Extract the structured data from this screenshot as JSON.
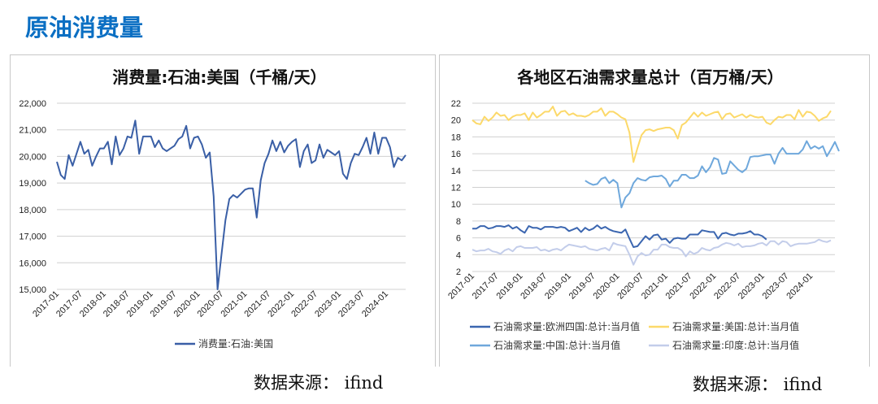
{
  "header": {
    "title": "原油消费量"
  },
  "source": {
    "left": "数据来源：  ifind",
    "right": "数据来源：  ifind"
  },
  "colors": {
    "title": "#0b6fc3",
    "us_consumption": "#3a5fa6",
    "europe": "#3b66b0",
    "us": "#fcd96a",
    "china": "#6fa8dc",
    "india": "#c3cdea"
  },
  "chart_data": [
    {
      "type": "line",
      "title": "消费量:石油:美国（千桶/天）",
      "xlabel": "",
      "ylabel": "",
      "ylim": [
        15000,
        22000
      ],
      "yticks": [
        "15,000",
        "16,000",
        "17,000",
        "18,000",
        "19,000",
        "20,000",
        "21,000",
        "22,000"
      ],
      "ytick_values": [
        15000,
        16000,
        17000,
        18000,
        19000,
        20000,
        21000,
        22000
      ],
      "xticks": [
        "2017-01",
        "2017-07",
        "2018-01",
        "2018-07",
        "2019-01",
        "2019-07",
        "2020-01",
        "2020-07",
        "2021-01",
        "2021-07",
        "2022-01",
        "2022-07",
        "2023-01",
        "2023-07",
        "2024-01"
      ],
      "start_month": "2017-01",
      "legend_position": "bottom",
      "grid": true,
      "series": [
        {
          "name": "消费量:石油:美国",
          "color": "#3a5fa6",
          "values": [
            19800,
            19300,
            19150,
            20050,
            19650,
            20100,
            20550,
            20100,
            20250,
            19650,
            20000,
            20300,
            20300,
            20550,
            19700,
            20750,
            20050,
            20300,
            20750,
            20700,
            21350,
            20100,
            20750,
            20750,
            20750,
            20350,
            20600,
            20300,
            20200,
            20300,
            20400,
            20650,
            20750,
            21150,
            20300,
            20700,
            20750,
            20450,
            19950,
            20150,
            18500,
            15000,
            16300,
            17600,
            18400,
            18550,
            18450,
            18600,
            18750,
            18800,
            18800,
            17700,
            19100,
            19750,
            20100,
            20600,
            20200,
            20550,
            20150,
            20400,
            20550,
            20650,
            19600,
            20200,
            20450,
            19750,
            19850,
            20450,
            19950,
            20250,
            20150,
            20050,
            20200,
            19350,
            19150,
            19750,
            20100,
            20050,
            20350,
            20700,
            20100,
            20900,
            20100,
            20700,
            20700,
            20350,
            19600,
            19950,
            19850,
            20050
          ]
        }
      ]
    },
    {
      "type": "line",
      "title": "各地区石油需求量总计（百万桶/天）",
      "xlabel": "",
      "ylabel": "",
      "ylim": [
        2,
        22
      ],
      "yticks": [
        "2",
        "4",
        "6",
        "8",
        "10",
        "12",
        "14",
        "16",
        "18",
        "20",
        "22"
      ],
      "ytick_values": [
        2,
        4,
        6,
        8,
        10,
        12,
        14,
        16,
        18,
        20,
        22
      ],
      "xticks": [
        "2017-01",
        "2017-07",
        "2018-01",
        "2018-07",
        "2019-01",
        "2019-07",
        "2020-01",
        "2020-07",
        "2021-01",
        "2021-07",
        "2022-01",
        "2022-07",
        "2023-01",
        "2023-07",
        "2024-01"
      ],
      "start_month": "2017-01",
      "legend_position": "bottom",
      "grid": true,
      "series": [
        {
          "name": "石油需求量:欧洲四国:总计:当月值",
          "color": "#3b66b0",
          "start_index": 0,
          "values": [
            7.1,
            7.1,
            7.4,
            7.4,
            7.1,
            7.2,
            7.4,
            7.4,
            7.3,
            7.5,
            7.1,
            7.3,
            6.9,
            6.6,
            7.4,
            7.2,
            7.2,
            7.0,
            7.3,
            7.3,
            7.3,
            7.2,
            7.3,
            7.2,
            6.8,
            7.0,
            7.2,
            6.7,
            7.2,
            6.9,
            7.1,
            7.5,
            7.1,
            7.3,
            7.0,
            6.8,
            6.7,
            6.6,
            7.0,
            5.9,
            4.9,
            5.0,
            5.6,
            6.2,
            5.8,
            6.3,
            6.4,
            5.8,
            5.9,
            5.4,
            5.9,
            6.0,
            5.9,
            5.9,
            6.4,
            6.4,
            6.4,
            6.9,
            6.8,
            6.7,
            6.7,
            5.9,
            6.5,
            6.6,
            6.4,
            6.3,
            6.5,
            6.5,
            6.6,
            6.8,
            6.4,
            6.4,
            6.2,
            5.8
          ]
        },
        {
          "name": "石油需求量:美国:总计:当月值",
          "color": "#fcd96a",
          "start_index": 0,
          "values": [
            20.0,
            19.6,
            19.5,
            20.4,
            19.9,
            20.3,
            20.9,
            20.5,
            20.6,
            20.0,
            20.4,
            20.6,
            20.6,
            20.8,
            20.0,
            20.9,
            20.3,
            20.6,
            21.0,
            21.0,
            21.6,
            20.5,
            21.0,
            21.1,
            20.6,
            20.8,
            20.5,
            20.5,
            20.4,
            20.6,
            21.0,
            21.0,
            21.4,
            20.5,
            21.0,
            21.0,
            20.7,
            20.3,
            20.1,
            18.5,
            15.0,
            16.7,
            18.2,
            18.8,
            18.9,
            18.7,
            18.9,
            19.0,
            19.1,
            19.1,
            18.8,
            17.8,
            19.4,
            19.7,
            20.3,
            20.9,
            20.4,
            20.9,
            20.5,
            20.7,
            20.9,
            21.0,
            20.1,
            20.7,
            20.8,
            20.3,
            20.5,
            20.7,
            20.3,
            20.6,
            20.4,
            20.3,
            20.4,
            19.7,
            19.5,
            20.0,
            20.4,
            20.3,
            20.6,
            20.6,
            20.1,
            21.2,
            20.4,
            21.0,
            20.9,
            20.5,
            19.9,
            20.2,
            20.4,
            21.1
          ]
        },
        {
          "name": "石油需求量:中国:总计:当月值",
          "color": "#6fa8dc",
          "start_index": 28,
          "values": [
            12.8,
            12.5,
            12.3,
            12.4,
            13.0,
            13.2,
            12.5,
            12.9,
            12.5,
            9.6,
            10.8,
            11.3,
            12.5,
            13.1,
            12.9,
            12.8,
            13.2,
            13.3,
            13.3,
            13.4,
            13.0,
            12.1,
            12.8,
            12.8,
            13.5,
            13.5,
            13.1,
            13.1,
            13.4,
            14.5,
            13.8,
            14.4,
            15.5,
            15.3,
            13.6,
            13.7,
            15.1,
            14.6,
            14.1,
            13.8,
            14.2,
            15.6,
            15.7,
            15.7,
            15.8,
            15.9,
            15.9,
            14.8,
            16.0,
            16.7,
            16.0,
            16.0,
            16.0,
            16.0,
            16.5,
            17.5,
            16.6,
            16.9,
            16.6,
            16.9,
            15.7,
            16.5,
            17.4,
            16.3
          ]
        },
        {
          "name": "石油需求量:印度:总计:当月值",
          "color": "#c3cdea",
          "start_index": 0,
          "values": [
            4.6,
            4.4,
            4.5,
            4.5,
            4.7,
            4.4,
            4.3,
            4.1,
            4.5,
            4.7,
            4.4,
            4.9,
            5.0,
            4.8,
            4.8,
            4.8,
            4.9,
            4.5,
            4.6,
            4.4,
            4.6,
            4.7,
            4.5,
            4.9,
            5.2,
            5.1,
            5.0,
            4.9,
            5.0,
            4.7,
            4.6,
            4.5,
            4.7,
            4.8,
            4.5,
            5.4,
            5.2,
            5.1,
            5.0,
            4.0,
            2.8,
            3.8,
            4.2,
            3.9,
            4.0,
            4.6,
            4.6,
            5.2,
            5.2,
            4.9,
            4.8,
            4.8,
            4.5,
            3.8,
            4.4,
            4.1,
            4.3,
            4.8,
            4.6,
            4.5,
            4.8,
            4.9,
            5.2,
            5.4,
            5.3,
            5.1,
            5.3,
            4.9,
            5.0,
            5.0,
            5.1,
            5.3,
            5.4,
            5.1,
            5.6,
            5.6,
            5.2,
            5.6,
            5.5,
            5.0,
            5.2,
            5.3,
            5.3,
            5.3,
            5.4,
            5.5,
            5.8,
            5.6,
            5.5,
            5.7
          ]
        }
      ]
    }
  ]
}
